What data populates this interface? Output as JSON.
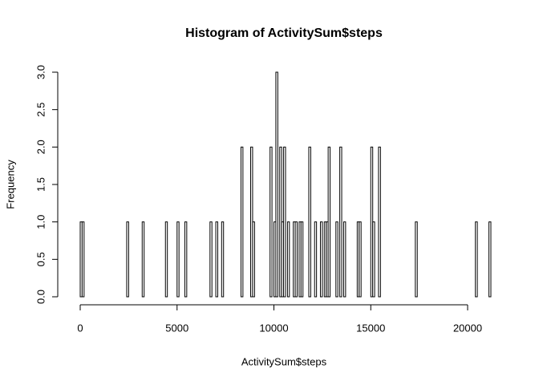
{
  "chart_data": {
    "type": "histogram",
    "title": "Histogram of ActivitySum$steps",
    "x_label": "ActivitySum$steps",
    "y_label": "Frequency",
    "bins": [
      0,
      100,
      200,
      300,
      400,
      500,
      600,
      700,
      800,
      900,
      1000,
      1100,
      1200,
      1300,
      1400,
      1500,
      1600,
      1700,
      1800,
      1900,
      2000,
      2100,
      2200,
      2300,
      2400,
      2500,
      2600,
      2700,
      2800,
      2900,
      3000,
      3100,
      3200,
      3300,
      3400,
      3500,
      3600,
      3700,
      3800,
      3900,
      4000,
      4100,
      4200,
      4300,
      4400,
      4500,
      4600,
      4700,
      4800,
      4900,
      5000,
      5100,
      5200,
      5300,
      5400,
      5500,
      5600,
      5700,
      5800,
      5900,
      6000,
      6100,
      6200,
      6300,
      6400,
      6500,
      6600,
      6700,
      6800,
      6900,
      7000,
      7100,
      7200,
      7300,
      7400,
      7500,
      7600,
      7700,
      7800,
      7900,
      8000,
      8100,
      8200,
      8300,
      8400,
      8500,
      8600,
      8700,
      8800,
      8900,
      9000,
      9100,
      9200,
      9300,
      9400,
      9500,
      9600,
      9700,
      9800,
      9900,
      10000,
      10100,
      10200,
      10300,
      10400,
      10500,
      10600,
      10700,
      10800,
      10900,
      11000,
      11100,
      11200,
      11300,
      11400,
      11500,
      11600,
      11700,
      11800,
      11900,
      12000,
      12100,
      12200,
      12300,
      12400,
      12500,
      12600,
      12700,
      12800,
      12900,
      13000,
      13100,
      13200,
      13300,
      13400,
      13500,
      13600,
      13700,
      13800,
      13900,
      14000,
      14100,
      14200,
      14300,
      14400,
      14500,
      14600,
      14700,
      14800,
      14900,
      15000,
      15100,
      15200,
      15300,
      15400,
      15500,
      15600,
      15700,
      15800,
      15900,
      16000,
      16100,
      16200,
      16300,
      16400,
      16500,
      16600,
      16700,
      16800,
      16900,
      17000,
      17100,
      17200,
      17300,
      17400,
      17500,
      17600,
      17700,
      17800,
      17900,
      18000,
      18100,
      18200,
      18300,
      18400,
      18500,
      18600,
      18700,
      18800,
      18900,
      19000,
      19100,
      19200,
      19300,
      19400,
      19500,
      19600,
      19700,
      19800,
      19900,
      20000,
      20100,
      20200,
      20300,
      20400,
      20500,
      20600,
      20700,
      20800,
      20900,
      21000,
      21100,
      21200
    ],
    "values": [
      1,
      1,
      0,
      0,
      0,
      0,
      0,
      0,
      0,
      0,
      0,
      0,
      0,
      0,
      0,
      0,
      0,
      0,
      0,
      0,
      0,
      0,
      0,
      0,
      1,
      0,
      0,
      0,
      0,
      0,
      0,
      0,
      1,
      0,
      0,
      0,
      0,
      0,
      0,
      0,
      0,
      0,
      0,
      0,
      1,
      0,
      0,
      0,
      0,
      0,
      1,
      0,
      0,
      0,
      1,
      0,
      0,
      0,
      0,
      0,
      0,
      0,
      0,
      0,
      0,
      0,
      0,
      1,
      0,
      0,
      1,
      0,
      0,
      1,
      0,
      0,
      0,
      0,
      0,
      0,
      0,
      0,
      0,
      2,
      0,
      0,
      0,
      0,
      2,
      1,
      0,
      0,
      0,
      0,
      0,
      0,
      0,
      0,
      2,
      0,
      1,
      3,
      0,
      2,
      1,
      2,
      0,
      1,
      0,
      0,
      1,
      1,
      0,
      1,
      1,
      0,
      0,
      0,
      2,
      0,
      0,
      1,
      0,
      0,
      1,
      0,
      1,
      1,
      2,
      0,
      0,
      0,
      1,
      0,
      2,
      0,
      1,
      0,
      0,
      0,
      0,
      0,
      0,
      1,
      1,
      0,
      0,
      0,
      0,
      0,
      2,
      1,
      0,
      0,
      2,
      0,
      0,
      0,
      0,
      0,
      0,
      0,
      0,
      0,
      0,
      0,
      0,
      0,
      0,
      0,
      0,
      0,
      0,
      1,
      0,
      0,
      0,
      0,
      0,
      0,
      0,
      0,
      0,
      0,
      0,
      0,
      0,
      0,
      0,
      0,
      0,
      0,
      0,
      0,
      0,
      0,
      0,
      0,
      0,
      0,
      0,
      0,
      0,
      0,
      1,
      0,
      0,
      0,
      0,
      0,
      0,
      1
    ],
    "color": "#ffffff",
    "xlim": [
      0,
      21200
    ],
    "ylim": [
      0,
      3
    ],
    "xticks": [
      0,
      5000,
      10000,
      15000,
      20000
    ],
    "yticks": [
      {
        "value": 0,
        "label": "0.0"
      },
      {
        "value": 0.5,
        "label": "0.5"
      },
      {
        "value": 1,
        "label": "1.0"
      },
      {
        "value": 1.5,
        "label": "1.5"
      },
      {
        "value": 2,
        "label": "2.0"
      },
      {
        "value": 2.5,
        "label": "2.5"
      },
      {
        "value": 3,
        "label": "3.0"
      }
    ]
  }
}
